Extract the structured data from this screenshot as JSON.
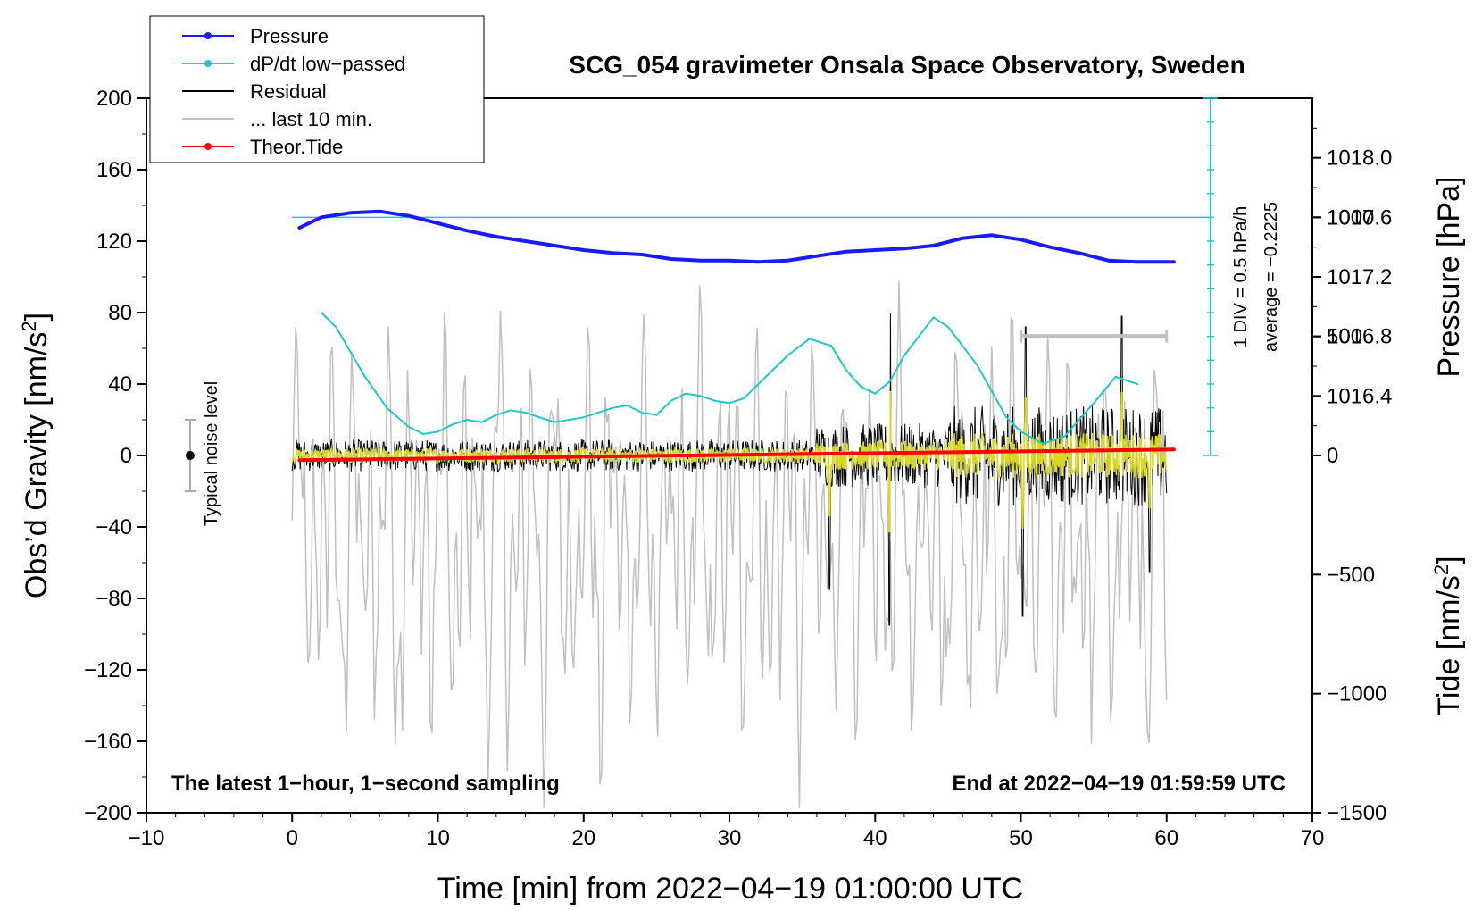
{
  "chart_data": {
    "type": "line",
    "title": "SCG_054 gravimeter Onsala Space Observatory, Sweden",
    "xlabel": "Time [min] from 2022−04−19 01:00:00 UTC",
    "ylabel_left_main": "Obs’d Gravity [nm/s",
    "ylabel_left_sup": "2",
    "ylabel_left_end": "]",
    "ylabel_right_top": "Pressure [hPa]",
    "ylabel_right_bottom_main": "Tide [nm/s",
    "ylabel_right_bottom_sup": "2",
    "ylabel_right_bottom_end": "]",
    "xlim": [
      -10,
      70
    ],
    "ylim": [
      -200,
      200
    ],
    "pressure_lim": [
      1016.0,
      1018.4
    ],
    "tide_lim": [
      -1500,
      1500
    ],
    "x_ticks": [
      -10,
      0,
      10,
      20,
      30,
      40,
      50,
      60,
      70
    ],
    "x_tick_labels": [
      "−10",
      "0",
      "10",
      "20",
      "30",
      "40",
      "50",
      "60",
      "70"
    ],
    "y_ticks": [
      200,
      160,
      120,
      80,
      40,
      0,
      -40,
      -80,
      -120,
      -160,
      -200
    ],
    "y_tick_labels": [
      "200",
      "160",
      "120",
      "80",
      "40",
      "0",
      "−40",
      "−80",
      "−120",
      "−160",
      "−200"
    ],
    "pressure_ticks": [
      1018.0,
      1017.6,
      1017.2,
      1016.8,
      1016.4
    ],
    "pressure_tick_labels": [
      "1018.0",
      "1017.6",
      "1017.2",
      "1016.8",
      "1016.4"
    ],
    "tide_ticks": [
      1000,
      500,
      0,
      -500,
      -1000,
      -1500
    ],
    "tide_tick_labels": [
      "1000",
      "500",
      "0",
      "−500",
      "−1000",
      "−1500"
    ],
    "legend": [
      {
        "label": "Pressure",
        "color": "#1a1aff",
        "marker": true
      },
      {
        "label": "dP/dt low−passed",
        "color": "#20c8c8",
        "marker": true
      },
      {
        "label": "Residual",
        "color": "#000000",
        "marker": false
      },
      {
        "label": "... last 10 min.",
        "color": "#c0c0c0",
        "marker": false
      },
      {
        "label": "Theor.Tide",
        "color": "#ff0000",
        "marker": true
      }
    ],
    "series": [
      {
        "name": "Pressure",
        "axis": "pressure",
        "color": "#1a1aff",
        "x": [
          0.5,
          2,
          4,
          6,
          8,
          10,
          12,
          14,
          16,
          18,
          20,
          22,
          24,
          26,
          28,
          30,
          32,
          34,
          36,
          38,
          40,
          42,
          44,
          46,
          48,
          50,
          52,
          54,
          56,
          58,
          60.5
        ],
        "values": [
          1017.53,
          1017.6,
          1017.63,
          1017.64,
          1017.61,
          1017.56,
          1017.51,
          1017.47,
          1017.44,
          1017.41,
          1017.38,
          1017.36,
          1017.35,
          1017.32,
          1017.31,
          1017.31,
          1017.3,
          1017.31,
          1017.34,
          1017.37,
          1017.38,
          1017.39,
          1017.41,
          1017.46,
          1017.48,
          1017.45,
          1017.4,
          1017.36,
          1017.31,
          1017.3,
          1017.3
        ]
      },
      {
        "name": "dP/dt low−passed",
        "axis": "ddiv",
        "color": "#20c8c8",
        "x": [
          2,
          3,
          5,
          6.5,
          8,
          9,
          10,
          11,
          12,
          13,
          14,
          15,
          16,
          18,
          20,
          22,
          23,
          24,
          25,
          26,
          27,
          28,
          29,
          30,
          31,
          32,
          34,
          35.5,
          37,
          38,
          39,
          40,
          41,
          42,
          44,
          45,
          47,
          49,
          50,
          51.5,
          53,
          55,
          56.5,
          58
        ],
        "values": [
          6.0,
          5.4,
          3.3,
          2.0,
          1.2,
          0.9,
          1.0,
          1.3,
          1.5,
          1.4,
          1.7,
          1.9,
          1.8,
          1.4,
          1.6,
          2.0,
          2.1,
          1.8,
          1.7,
          2.3,
          2.6,
          2.5,
          2.3,
          2.2,
          2.4,
          3.0,
          4.2,
          4.9,
          4.6,
          3.6,
          2.9,
          2.6,
          3.1,
          4.2,
          5.8,
          5.4,
          3.8,
          1.6,
          1.0,
          0.5,
          0.8,
          2.2,
          3.3,
          3.0
        ]
      },
      {
        "name": "Theor.Tide",
        "axis": "tide",
        "color": "#ff0000",
        "x": [
          0.5,
          60.5
        ],
        "values": [
          -20,
          25
        ]
      }
    ],
    "dpdt_scale": {
      "label": "1 DIV = 0.5 hPa/h",
      "average": "average = −0.2225",
      "divisions": 15,
      "baseline_div": 10
    },
    "noise_indicator": {
      "label": "Typical noise level",
      "half_range": 20
    },
    "last_window": {
      "start": 50,
      "end": 60
    },
    "notes": {
      "bottom_left": "The latest 1−hour, 1−second sampling",
      "bottom_right": "End at 2022−04−19 01:59:59 UTC"
    }
  }
}
